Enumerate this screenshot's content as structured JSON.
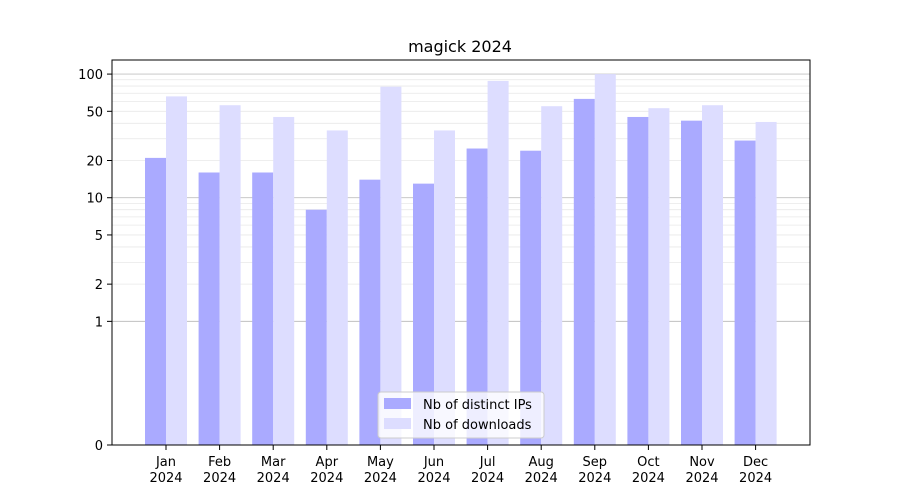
{
  "chart_data": {
    "type": "bar",
    "title": "magick 2024",
    "xlabel": "",
    "ylabel": "",
    "scale": "symlog",
    "ylim": [
      0,
      130
    ],
    "grid": true,
    "legend_position": "bottom-center",
    "categories": [
      [
        "Jan",
        "2024"
      ],
      [
        "Feb",
        "2024"
      ],
      [
        "Mar",
        "2024"
      ],
      [
        "Apr",
        "2024"
      ],
      [
        "May",
        "2024"
      ],
      [
        "Jun",
        "2024"
      ],
      [
        "Jul",
        "2024"
      ],
      [
        "Aug",
        "2024"
      ],
      [
        "Sep",
        "2024"
      ],
      [
        "Oct",
        "2024"
      ],
      [
        "Nov",
        "2024"
      ],
      [
        "Dec",
        "2024"
      ]
    ],
    "yticks": [
      0,
      1,
      2,
      5,
      10,
      20,
      50,
      100
    ],
    "series": [
      {
        "name": "Nb of distinct IPs",
        "color": "#aaaaff",
        "values": [
          21,
          16,
          16,
          8,
          14,
          13,
          25,
          24,
          63,
          45,
          42,
          29
        ]
      },
      {
        "name": "Nb of downloads",
        "color": "#ddddff",
        "values": [
          66,
          56,
          45,
          35,
          79,
          35,
          88,
          55,
          100,
          53,
          56,
          41
        ]
      }
    ]
  }
}
